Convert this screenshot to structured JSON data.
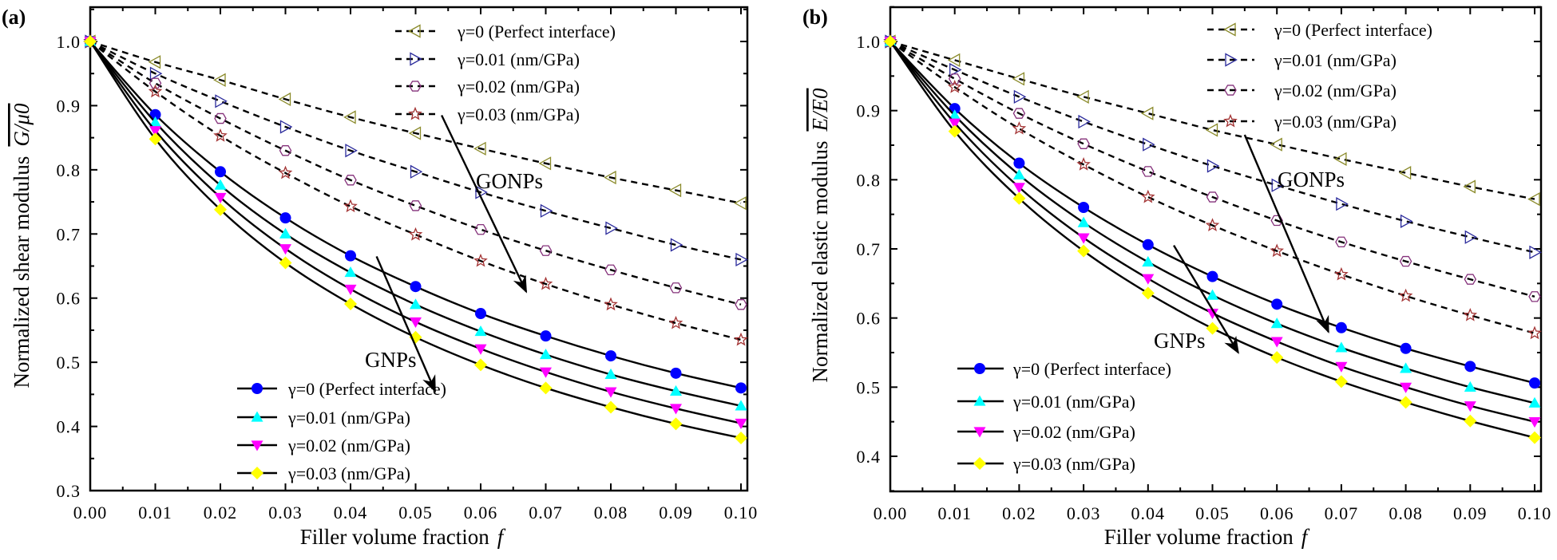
{
  "chart_data": [
    {
      "panel_label": "(a)",
      "type": "line",
      "xlabel": "Filler volume fraction",
      "xlabel_symbol": "f",
      "ylabel": "Normalized shear modulus",
      "ylabel_symbol": "G/μ0",
      "xlim": [
        0,
        0.1
      ],
      "ylim": [
        0.3,
        1.05
      ],
      "xticks": [
        "0.00",
        "0.01",
        "0.02",
        "0.03",
        "0.04",
        "0.05",
        "0.06",
        "0.07",
        "0.08",
        "0.09",
        "0.10"
      ],
      "yticks": [
        "0.3",
        "0.4",
        "0.5",
        "0.6",
        "0.7",
        "0.8",
        "0.9",
        "1.0"
      ],
      "grid": false,
      "x": [
        0,
        0.01,
        0.02,
        0.03,
        0.04,
        0.05,
        0.06,
        0.07,
        0.08,
        0.09,
        0.1
      ],
      "series": [
        {
          "name": "γ=0 (Perfect interface)",
          "group": "GONPs",
          "style": "dashed",
          "marker": "triangle-left",
          "color": "#8a8a2a",
          "filled": false,
          "values": [
            1,
            0.968,
            0.94,
            0.91,
            0.882,
            0.857,
            0.833,
            0.81,
            0.788,
            0.768,
            0.748
          ]
        },
        {
          "name": "γ=0.01 (nm/GPa)",
          "group": "GONPs",
          "style": "dashed",
          "marker": "triangle-right",
          "color": "#2b2b9c",
          "filled": false,
          "values": [
            1,
            0.95,
            0.907,
            0.867,
            0.83,
            0.797,
            0.765,
            0.736,
            0.709,
            0.683,
            0.66
          ]
        },
        {
          "name": "γ=0.02 (nm/GPa)",
          "group": "GONPs",
          "style": "dashed",
          "marker": "hexagon",
          "color": "#84307a",
          "filled": false,
          "values": [
            1,
            0.935,
            0.88,
            0.83,
            0.784,
            0.744,
            0.707,
            0.674,
            0.644,
            0.616,
            0.59
          ]
        },
        {
          "name": "γ=0.03 (nm/GPa)",
          "group": "GONPs",
          "style": "dashed",
          "marker": "star",
          "color": "#a33333",
          "filled": false,
          "values": [
            1,
            0.922,
            0.853,
            0.795,
            0.743,
            0.699,
            0.658,
            0.622,
            0.59,
            0.561,
            0.535
          ]
        },
        {
          "name": "γ=0 (Perfect interface)",
          "group": "GNPs",
          "style": "solid",
          "marker": "circle",
          "color": "#0000ff",
          "filled": true,
          "values": [
            1,
            0.886,
            0.797,
            0.725,
            0.666,
            0.618,
            0.576,
            0.541,
            0.51,
            0.483,
            0.46
          ]
        },
        {
          "name": "γ=0.01 (nm/GPa)",
          "group": "GNPs",
          "style": "solid",
          "marker": "triangle-up",
          "color": "#00ffff",
          "filled": true,
          "values": [
            1,
            0.874,
            0.776,
            0.7,
            0.64,
            0.59,
            0.548,
            0.512,
            0.481,
            0.455,
            0.432
          ]
        },
        {
          "name": "γ=0.02 (nm/GPa)",
          "group": "GNPs",
          "style": "solid",
          "marker": "triangle-down",
          "color": "#ff00ff",
          "filled": true,
          "values": [
            1,
            0.861,
            0.757,
            0.677,
            0.614,
            0.563,
            0.521,
            0.485,
            0.454,
            0.428,
            0.405
          ]
        },
        {
          "name": "γ=0.03 (nm/GPa)",
          "group": "GNPs",
          "style": "solid",
          "marker": "diamond",
          "color": "#ffff00",
          "filled": true,
          "values": [
            1,
            0.848,
            0.738,
            0.655,
            0.591,
            0.539,
            0.496,
            0.46,
            0.43,
            0.404,
            0.382
          ]
        }
      ],
      "legends": [
        {
          "group": "GONPs",
          "placement": "top-right"
        },
        {
          "group": "GNPs",
          "placement": "bottom-center"
        }
      ],
      "annotations": [
        {
          "text": "GONPs",
          "arrow_from": [
            0.054,
            0.885
          ],
          "arrow_to": [
            0.067,
            0.61
          ]
        },
        {
          "text": "GNPs",
          "arrow_from": [
            0.044,
            0.665
          ],
          "arrow_to": [
            0.053,
            0.455
          ]
        }
      ]
    },
    {
      "panel_label": "(b)",
      "type": "line",
      "xlabel": "Filler volume fraction",
      "xlabel_symbol": "f",
      "ylabel": "Normalized elastic modulus",
      "ylabel_symbol": "E/E0",
      "xlim": [
        0,
        0.1
      ],
      "ylim": [
        0.35,
        1.05
      ],
      "xticks": [
        "0.00",
        "0.01",
        "0.02",
        "0.03",
        "0.04",
        "0.05",
        "0.06",
        "0.07",
        "0.08",
        "0.09",
        "0.10"
      ],
      "yticks": [
        "0.4",
        "0.5",
        "0.6",
        "0.7",
        "0.8",
        "0.9",
        "1.0"
      ],
      "grid": false,
      "x": [
        0,
        0.01,
        0.02,
        0.03,
        0.04,
        0.05,
        0.06,
        0.07,
        0.08,
        0.09,
        0.1
      ],
      "series": [
        {
          "name": "γ=0 (Perfect interface)",
          "group": "GONPs",
          "style": "dashed",
          "marker": "triangle-left",
          "color": "#8a8a2a",
          "filled": false,
          "values": [
            1,
            0.973,
            0.946,
            0.92,
            0.896,
            0.872,
            0.851,
            0.83,
            0.81,
            0.79,
            0.772
          ]
        },
        {
          "name": "γ=0.01 (nm/GPa)",
          "group": "GONPs",
          "style": "dashed",
          "marker": "triangle-right",
          "color": "#2b2b9c",
          "filled": false,
          "values": [
            1,
            0.959,
            0.92,
            0.884,
            0.851,
            0.82,
            0.792,
            0.765,
            0.74,
            0.717,
            0.695
          ]
        },
        {
          "name": "γ=0.02 (nm/GPa)",
          "group": "GONPs",
          "style": "dashed",
          "marker": "hexagon",
          "color": "#84307a",
          "filled": false,
          "values": [
            1,
            0.946,
            0.896,
            0.852,
            0.812,
            0.775,
            0.741,
            0.71,
            0.682,
            0.656,
            0.631
          ]
        },
        {
          "name": "γ=0.03 (nm/GPa)",
          "group": "GONPs",
          "style": "dashed",
          "marker": "star",
          "color": "#a33333",
          "filled": false,
          "values": [
            1,
            0.934,
            0.874,
            0.822,
            0.775,
            0.734,
            0.697,
            0.663,
            0.632,
            0.604,
            0.578
          ]
        },
        {
          "name": "γ=0 (Perfect interface)",
          "group": "GNPs",
          "style": "solid",
          "marker": "circle",
          "color": "#0000ff",
          "filled": true,
          "values": [
            1,
            0.903,
            0.824,
            0.76,
            0.706,
            0.66,
            0.62,
            0.586,
            0.556,
            0.53,
            0.506
          ]
        },
        {
          "name": "γ=0.01 (nm/GPa)",
          "group": "GNPs",
          "style": "solid",
          "marker": "triangle-up",
          "color": "#00ffff",
          "filled": true,
          "values": [
            1,
            0.893,
            0.807,
            0.738,
            0.681,
            0.633,
            0.592,
            0.557,
            0.527,
            0.5,
            0.477
          ]
        },
        {
          "name": "γ=0.02 (nm/GPa)",
          "group": "GNPs",
          "style": "solid",
          "marker": "triangle-down",
          "color": "#ff00ff",
          "filled": true,
          "values": [
            1,
            0.882,
            0.789,
            0.716,
            0.657,
            0.607,
            0.566,
            0.53,
            0.5,
            0.473,
            0.45
          ]
        },
        {
          "name": "γ=0.03 (nm/GPa)",
          "group": "GNPs",
          "style": "solid",
          "marker": "diamond",
          "color": "#ffff00",
          "filled": true,
          "values": [
            1,
            0.87,
            0.773,
            0.697,
            0.636,
            0.585,
            0.543,
            0.508,
            0.478,
            0.451,
            0.427
          ]
        }
      ],
      "legends": [
        {
          "group": "GONPs",
          "placement": "top-right"
        },
        {
          "group": "GNPs",
          "placement": "bottom-center"
        }
      ],
      "annotations": [
        {
          "text": "GONPs",
          "arrow_from": [
            0.055,
            0.865
          ],
          "arrow_to": [
            0.068,
            0.58
          ]
        },
        {
          "text": "GNPs",
          "arrow_from": [
            0.044,
            0.705
          ],
          "arrow_to": [
            0.054,
            0.55
          ]
        }
      ]
    }
  ]
}
